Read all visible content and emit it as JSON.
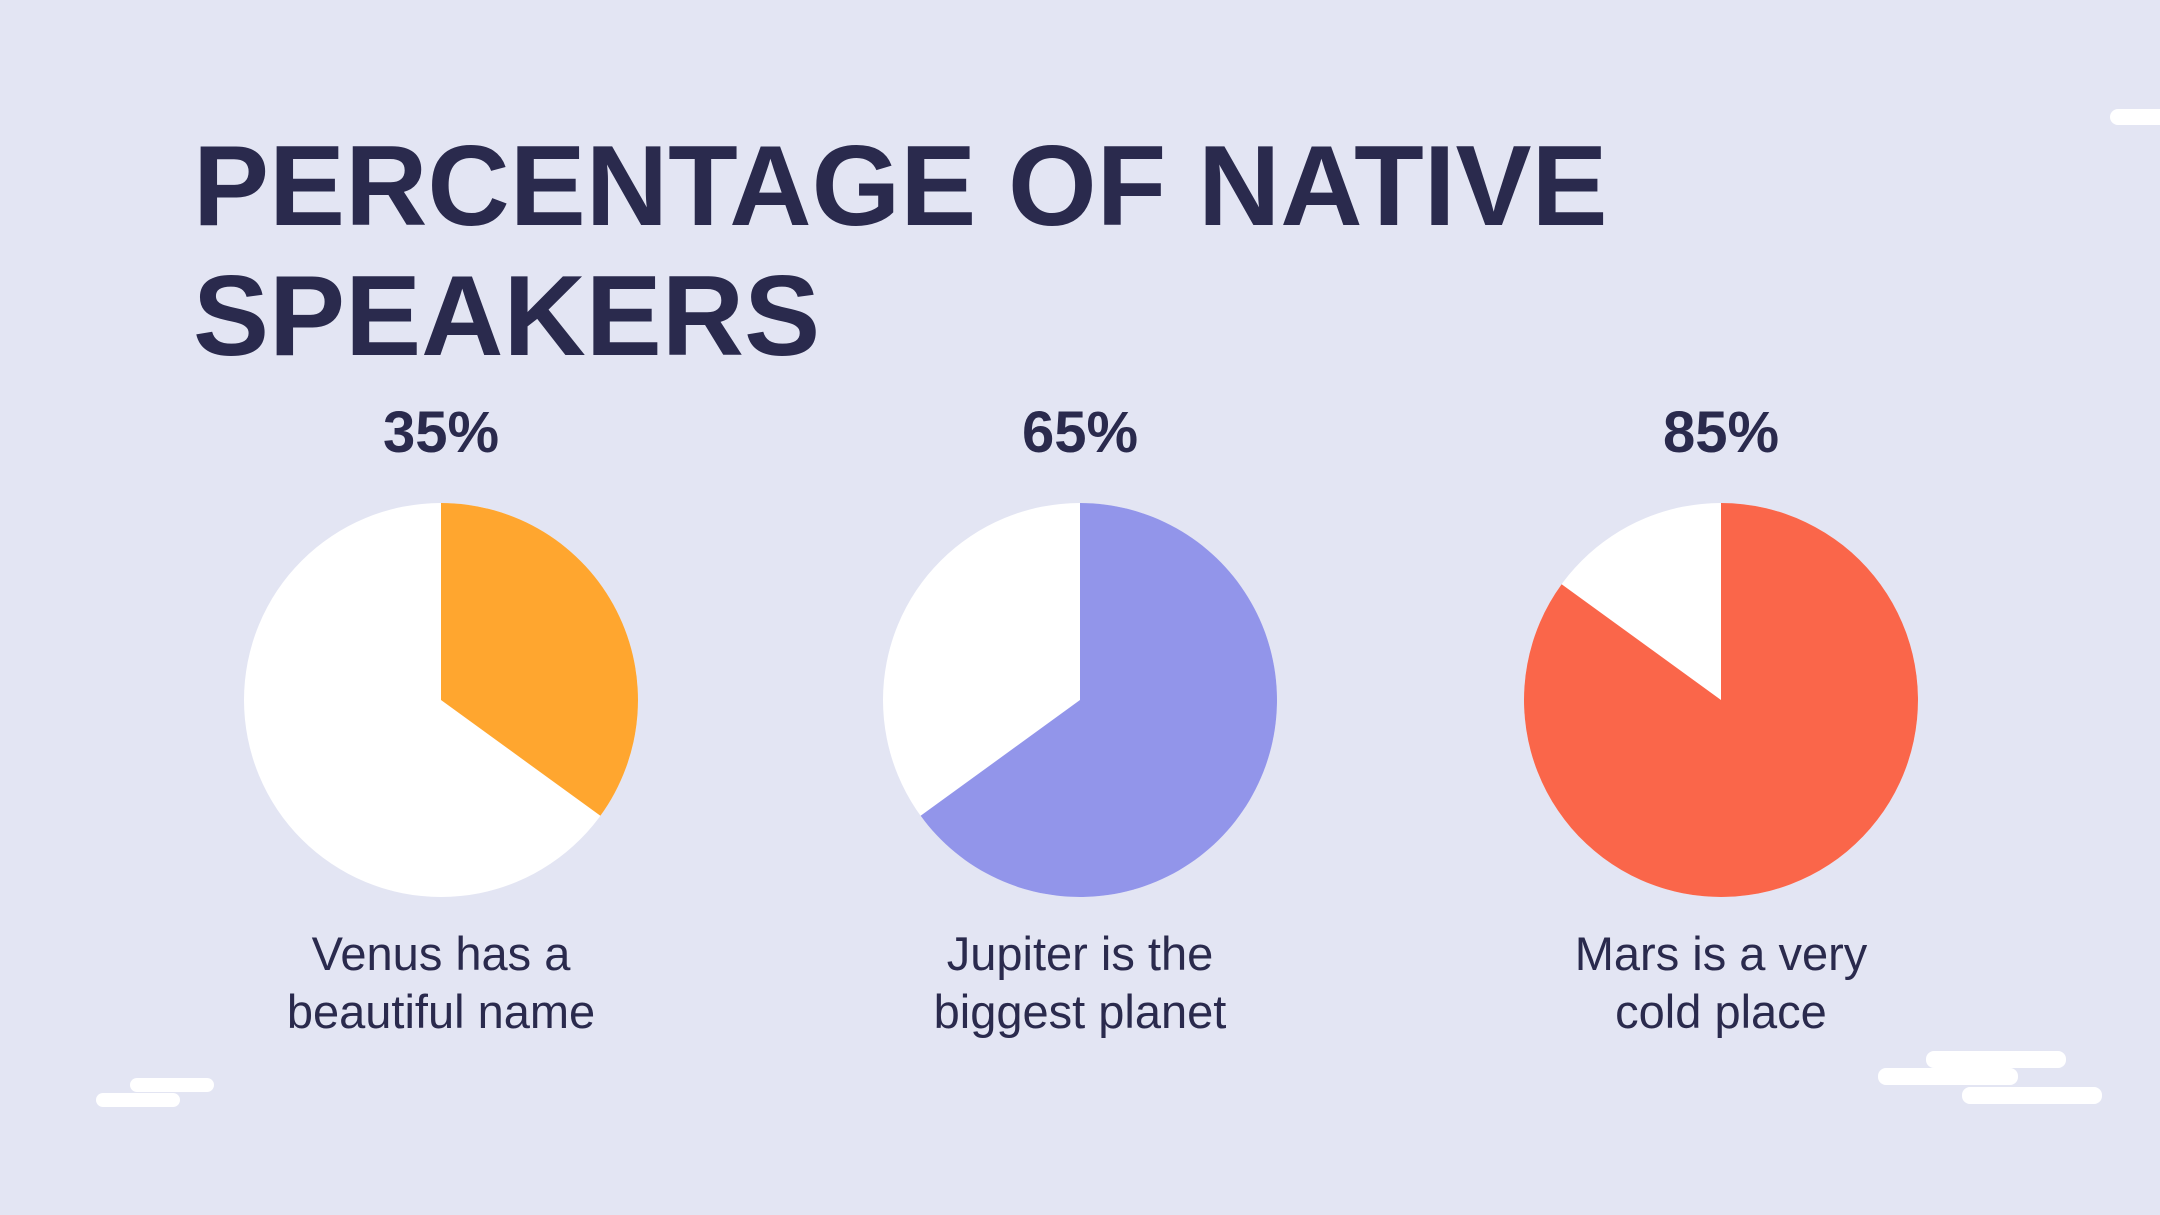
{
  "title": "PERCENTAGE OF NATIVE SPEAKERS",
  "chart_data": [
    {
      "type": "pie",
      "values": [
        35
      ],
      "value_labels": [
        "35%"
      ],
      "categories": [
        "Venus has a beautiful name"
      ],
      "color": "#ffa62f"
    },
    {
      "type": "pie",
      "values": [
        65
      ],
      "value_labels": [
        "65%"
      ],
      "categories": [
        "Jupiter is the biggest planet"
      ],
      "color": "#9295ea"
    },
    {
      "type": "pie",
      "values": [
        85
      ],
      "value_labels": [
        "85%"
      ],
      "categories": [
        "Mars is a very cold place"
      ],
      "color": "#fa664a"
    }
  ]
}
